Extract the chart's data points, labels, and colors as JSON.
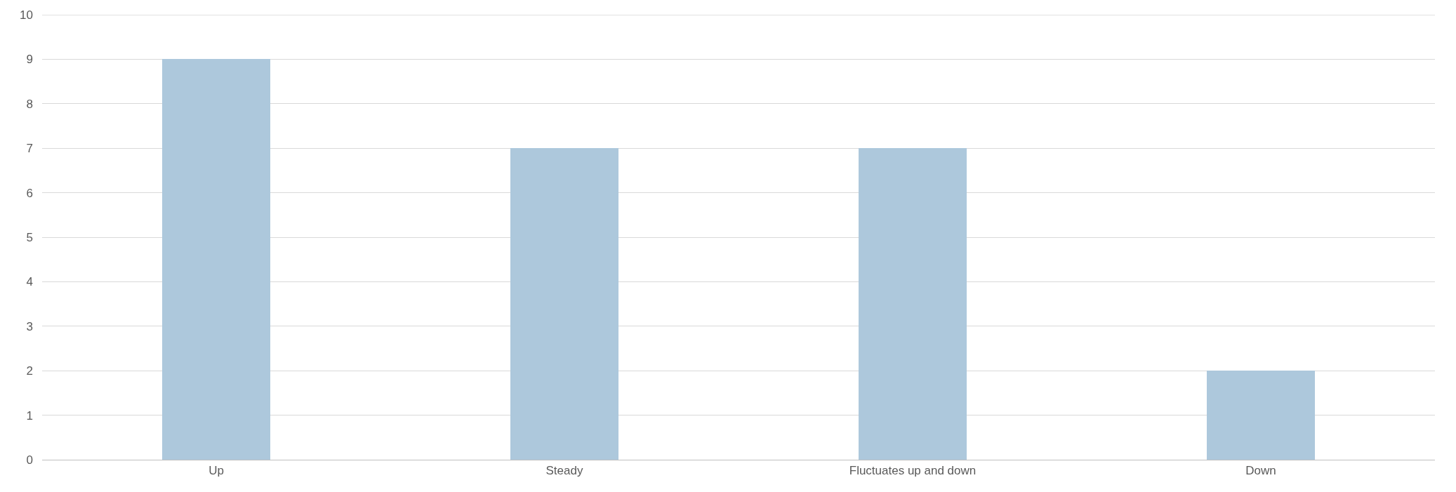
{
  "chart_data": {
    "type": "bar",
    "categories": [
      "Up",
      "Steady",
      "Fluctuates up and down",
      "Down"
    ],
    "values": [
      9,
      7,
      7,
      2
    ],
    "color": "#adc8dc",
    "ylim": [
      0,
      10
    ],
    "yticks": [
      0,
      1,
      2,
      3,
      4,
      5,
      6,
      7,
      8,
      9,
      10
    ],
    "grid": "y"
  }
}
